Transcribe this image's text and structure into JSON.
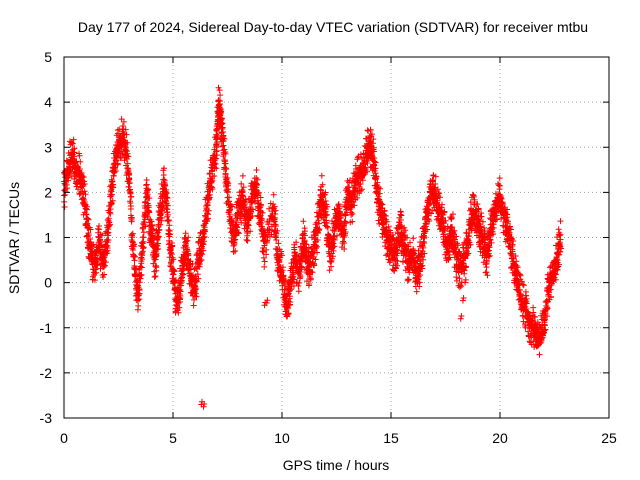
{
  "chart_data": {
    "type": "scatter",
    "title": "Day 177 of 2024, Sidereal Day-to-day VTEC variation (SDTVAR) for receiver mtbu",
    "xlabel": "GPS time / hours",
    "ylabel": "SDTVAR / TECUs",
    "xlim": [
      0,
      25
    ],
    "ylim": [
      -3,
      5
    ],
    "x_ticks": [
      0,
      5,
      10,
      15,
      20,
      25
    ],
    "x_tick_labels": [
      "0",
      "5",
      "10",
      "15",
      "20",
      "25"
    ],
    "y_ticks": [
      -3,
      -2,
      -1,
      0,
      1,
      2,
      3,
      4,
      5
    ],
    "y_tick_labels": [
      "-3",
      "-2",
      "-1",
      "0",
      "1",
      "2",
      "3",
      "4",
      "5"
    ],
    "grid": true,
    "marker": "+",
    "color": "#ff0000",
    "series": [
      {
        "name": "mtbu",
        "trace": [
          [
            0.0,
            2.0
          ],
          [
            0.2,
            2.6
          ],
          [
            0.4,
            2.8
          ],
          [
            0.6,
            2.5
          ],
          [
            0.8,
            2.3
          ],
          [
            1.0,
            1.5
          ],
          [
            1.2,
            0.8
          ],
          [
            1.4,
            0.3
          ],
          [
            1.6,
            0.9
          ],
          [
            1.8,
            0.5
          ],
          [
            2.0,
            1.0
          ],
          [
            2.2,
            2.1
          ],
          [
            2.4,
            2.8
          ],
          [
            2.6,
            3.2
          ],
          [
            2.8,
            3.1
          ],
          [
            3.0,
            2.3
          ],
          [
            3.2,
            0.5
          ],
          [
            3.4,
            -0.4
          ],
          [
            3.6,
            0.8
          ],
          [
            3.8,
            2.0
          ],
          [
            4.0,
            1.0
          ],
          [
            4.2,
            0.5
          ],
          [
            4.4,
            1.5
          ],
          [
            4.6,
            2.3
          ],
          [
            4.8,
            1.2
          ],
          [
            5.0,
            0.2
          ],
          [
            5.2,
            -0.5
          ],
          [
            5.4,
            0.2
          ],
          [
            5.6,
            0.9
          ],
          [
            5.8,
            0.2
          ],
          [
            6.0,
            -0.2
          ],
          [
            6.2,
            0.6
          ],
          [
            6.4,
            1.0
          ],
          [
            6.6,
            1.8
          ],
          [
            6.8,
            2.5
          ],
          [
            7.0,
            3.0
          ],
          [
            7.1,
            4.0
          ],
          [
            7.2,
            3.6
          ],
          [
            7.4,
            2.5
          ],
          [
            7.6,
            1.6
          ],
          [
            7.8,
            1.0
          ],
          [
            8.0,
            1.5
          ],
          [
            8.2,
            2.0
          ],
          [
            8.4,
            1.2
          ],
          [
            8.6,
            1.8
          ],
          [
            8.8,
            2.2
          ],
          [
            9.0,
            1.5
          ],
          [
            9.2,
            0.8
          ],
          [
            9.6,
            1.7
          ],
          [
            9.8,
            0.6
          ],
          [
            10.0,
            0.2
          ],
          [
            10.2,
            -0.6
          ],
          [
            10.4,
            0.0
          ],
          [
            10.6,
            0.5
          ],
          [
            10.8,
            0.2
          ],
          [
            11.0,
            1.0
          ],
          [
            11.2,
            0.3
          ],
          [
            11.4,
            0.6
          ],
          [
            11.6,
            1.1
          ],
          [
            11.8,
            2.0
          ],
          [
            12.0,
            1.5
          ],
          [
            12.2,
            0.6
          ],
          [
            12.4,
            1.2
          ],
          [
            12.6,
            1.6
          ],
          [
            12.8,
            1.0
          ],
          [
            13.0,
            2.0
          ],
          [
            13.2,
            1.7
          ],
          [
            13.4,
            2.3
          ],
          [
            13.6,
            2.4
          ],
          [
            13.8,
            2.6
          ],
          [
            14.0,
            3.1
          ],
          [
            14.2,
            2.7
          ],
          [
            14.4,
            1.9
          ],
          [
            14.6,
            1.4
          ],
          [
            14.8,
            1.0
          ],
          [
            15.0,
            0.8
          ],
          [
            15.2,
            0.5
          ],
          [
            15.4,
            1.3
          ],
          [
            15.6,
            0.8
          ],
          [
            15.8,
            0.4
          ],
          [
            16.0,
            0.7
          ],
          [
            16.2,
            0.1
          ],
          [
            16.4,
            0.6
          ],
          [
            16.6,
            1.4
          ],
          [
            16.8,
            1.9
          ],
          [
            17.0,
            2.0
          ],
          [
            17.2,
            1.6
          ],
          [
            17.4,
            1.2
          ],
          [
            17.6,
            0.8
          ],
          [
            17.8,
            1.2
          ],
          [
            18.0,
            0.5
          ],
          [
            18.2,
            0.2
          ],
          [
            18.4,
            0.6
          ],
          [
            18.6,
            1.2
          ],
          [
            18.8,
            1.6
          ],
          [
            19.0,
            1.3
          ],
          [
            19.2,
            1.0
          ],
          [
            19.4,
            0.5
          ],
          [
            19.6,
            1.2
          ],
          [
            19.8,
            1.7
          ],
          [
            20.0,
            1.9
          ],
          [
            20.2,
            1.5
          ],
          [
            20.4,
            1.0
          ],
          [
            20.6,
            0.5
          ],
          [
            20.8,
            0.0
          ],
          [
            21.0,
            -0.4
          ],
          [
            21.2,
            -0.6
          ],
          [
            21.4,
            -0.9
          ],
          [
            21.6,
            -1.1
          ],
          [
            21.8,
            -1.3
          ],
          [
            22.0,
            -1.0
          ],
          [
            22.2,
            -0.2
          ],
          [
            22.4,
            0.1
          ],
          [
            22.6,
            0.5
          ],
          [
            22.8,
            1.0
          ]
        ],
        "isolated_points": [
          [
            6.3,
            -2.7
          ],
          [
            6.4,
            -2.75
          ],
          [
            9.2,
            -0.5
          ],
          [
            9.3,
            -0.45
          ],
          [
            18.2,
            -0.8
          ],
          [
            18.3,
            -0.4
          ],
          [
            18.4,
            0.0
          ]
        ]
      }
    ]
  }
}
